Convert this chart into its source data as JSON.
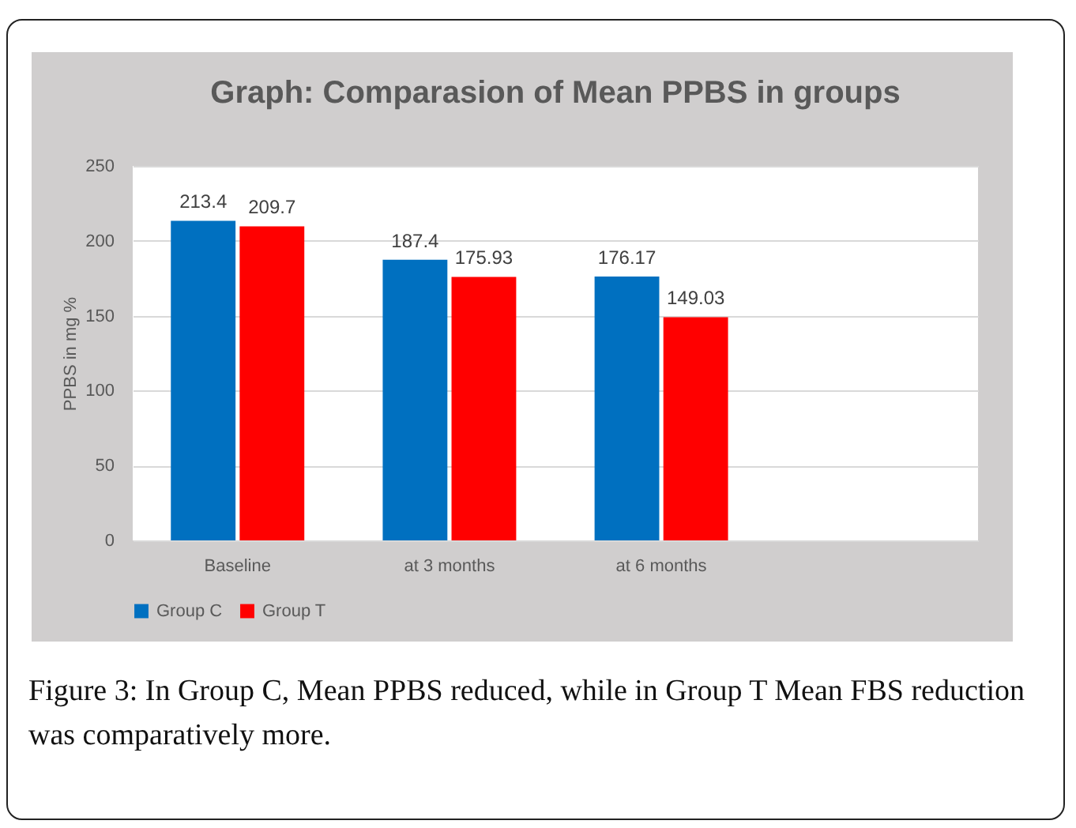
{
  "chart_data": {
    "type": "bar",
    "title": "Graph: Comparasion of Mean PPBS in groups",
    "ylabel": "PPBS  in mg %",
    "categories": [
      "Baseline",
      "at 3 months",
      "at 6 months",
      null
    ],
    "series": [
      {
        "name": "Group C",
        "color": "#0070c0",
        "values": [
          213.4,
          187.4,
          176.17,
          null
        ]
      },
      {
        "name": "Group T",
        "color": "#ff0000",
        "values": [
          209.7,
          175.93,
          149.03,
          null
        ]
      }
    ],
    "ylim": [
      0,
      250
    ],
    "yticks": [
      0,
      50,
      100,
      150,
      200,
      250
    ],
    "grid": "y",
    "legend": "bottom",
    "data_labels": true,
    "annotations": [
      "Figure 3: In Group C, Mean PPBS reduced, while in Group T Mean FBS reduction was comparatively more."
    ]
  }
}
